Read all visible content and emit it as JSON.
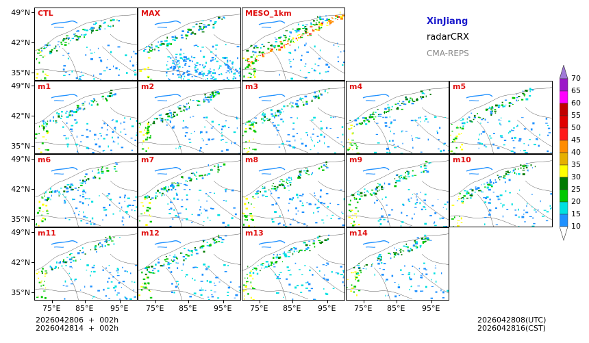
{
  "title": {
    "region": "XinJiang",
    "product": "radarCRX",
    "source": "CMA-REPS"
  },
  "panels": [
    {
      "id": "ctl",
      "label": "CTL",
      "kind": "ens"
    },
    {
      "id": "max",
      "label": "MAX",
      "kind": "max"
    },
    {
      "id": "meso",
      "label": "MESO_1km",
      "kind": "meso"
    },
    {
      "id": "m1",
      "label": "m1",
      "kind": "ens"
    },
    {
      "id": "m2",
      "label": "m2",
      "kind": "ens"
    },
    {
      "id": "m3",
      "label": "m3",
      "kind": "ens"
    },
    {
      "id": "m4",
      "label": "m4",
      "kind": "ens"
    },
    {
      "id": "m5",
      "label": "m5",
      "kind": "ens"
    },
    {
      "id": "m6",
      "label": "m6",
      "kind": "ens"
    },
    {
      "id": "m7",
      "label": "m7",
      "kind": "ens"
    },
    {
      "id": "m8",
      "label": "m8",
      "kind": "ens"
    },
    {
      "id": "m9",
      "label": "m9",
      "kind": "ens"
    },
    {
      "id": "m10",
      "label": "m10",
      "kind": "ens"
    },
    {
      "id": "m11",
      "label": "m11",
      "kind": "ens"
    },
    {
      "id": "m12",
      "label": "m12",
      "kind": "ens"
    },
    {
      "id": "m13",
      "label": "m13",
      "kind": "ens"
    },
    {
      "id": "m14",
      "label": "m14",
      "kind": "ens"
    }
  ],
  "lat_ticks": [
    "49°N",
    "42°N",
    "35°N"
  ],
  "lon_ticks": [
    "75°E",
    "85°E",
    "95°E"
  ],
  "colorbar": {
    "levels": [
      "70",
      "65",
      "60",
      "55",
      "50",
      "45",
      "40",
      "35",
      "30",
      "25",
      "20",
      "15",
      "10"
    ],
    "colors": [
      "#9c18c8",
      "#ff00ff",
      "#c00000",
      "#e00000",
      "#ff1a1a",
      "#ff8c00",
      "#e6b000",
      "#ffff00",
      "#007a00",
      "#00c800",
      "#00e0e0",
      "#1e90ff"
    ],
    "over_color": "#a07ad8",
    "under_color": "#ffffff"
  },
  "footer": {
    "init_line": "2026042806  +  002h",
    "init_line_cst": "2026042814  +  002h",
    "valid_utc": "2026042808(UTC)",
    "valid_cst": "2026042816(CST)"
  }
}
